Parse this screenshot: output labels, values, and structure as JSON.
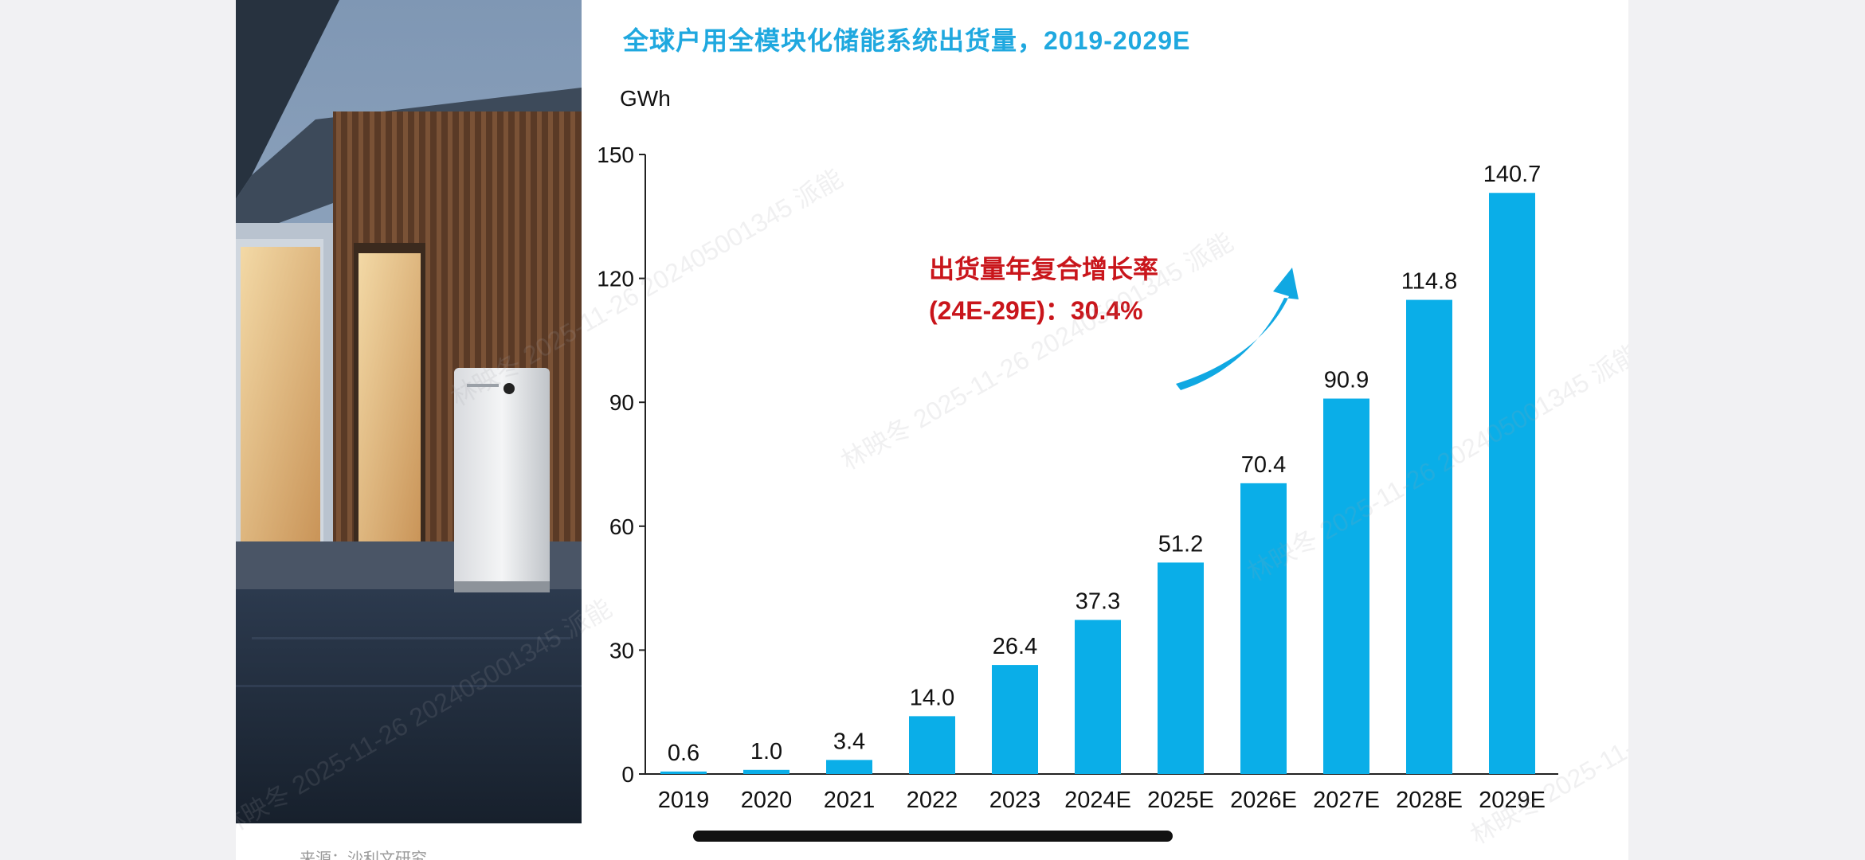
{
  "page": {
    "source_note": "来源：沙利文研究"
  },
  "annotation": {
    "line1": "出货量年复合增长率",
    "line2": "(24E-29E)：30.4%"
  },
  "watermark_text": "林映冬 2025-11-26 202405001345 派能",
  "colors": {
    "bar": "#0aaee8",
    "title": "#1fa8df",
    "annotation": "#c9151b",
    "arrow": "#10a8e2"
  },
  "chart_data": {
    "type": "bar",
    "title": "全球户用全模块化储能系统出货量，2019-2029E",
    "ylabel": "GWh",
    "xlabel": "",
    "categories": [
      "2019",
      "2020",
      "2021",
      "2022",
      "2023",
      "2024E",
      "2025E",
      "2026E",
      "2027E",
      "2028E",
      "2029E"
    ],
    "values": [
      0.6,
      1.0,
      3.4,
      14.0,
      26.4,
      37.3,
      51.2,
      70.4,
      90.9,
      114.8,
      140.7
    ],
    "value_labels": [
      "0.6",
      "1.0",
      "3.4",
      "14.0",
      "26.4",
      "37.3",
      "51.2",
      "70.4",
      "90.9",
      "114.8",
      "140.7"
    ],
    "ylim": [
      0,
      150
    ],
    "yticks": [
      0,
      30,
      60,
      90,
      120,
      150
    ],
    "grid": false,
    "legend": "none"
  }
}
